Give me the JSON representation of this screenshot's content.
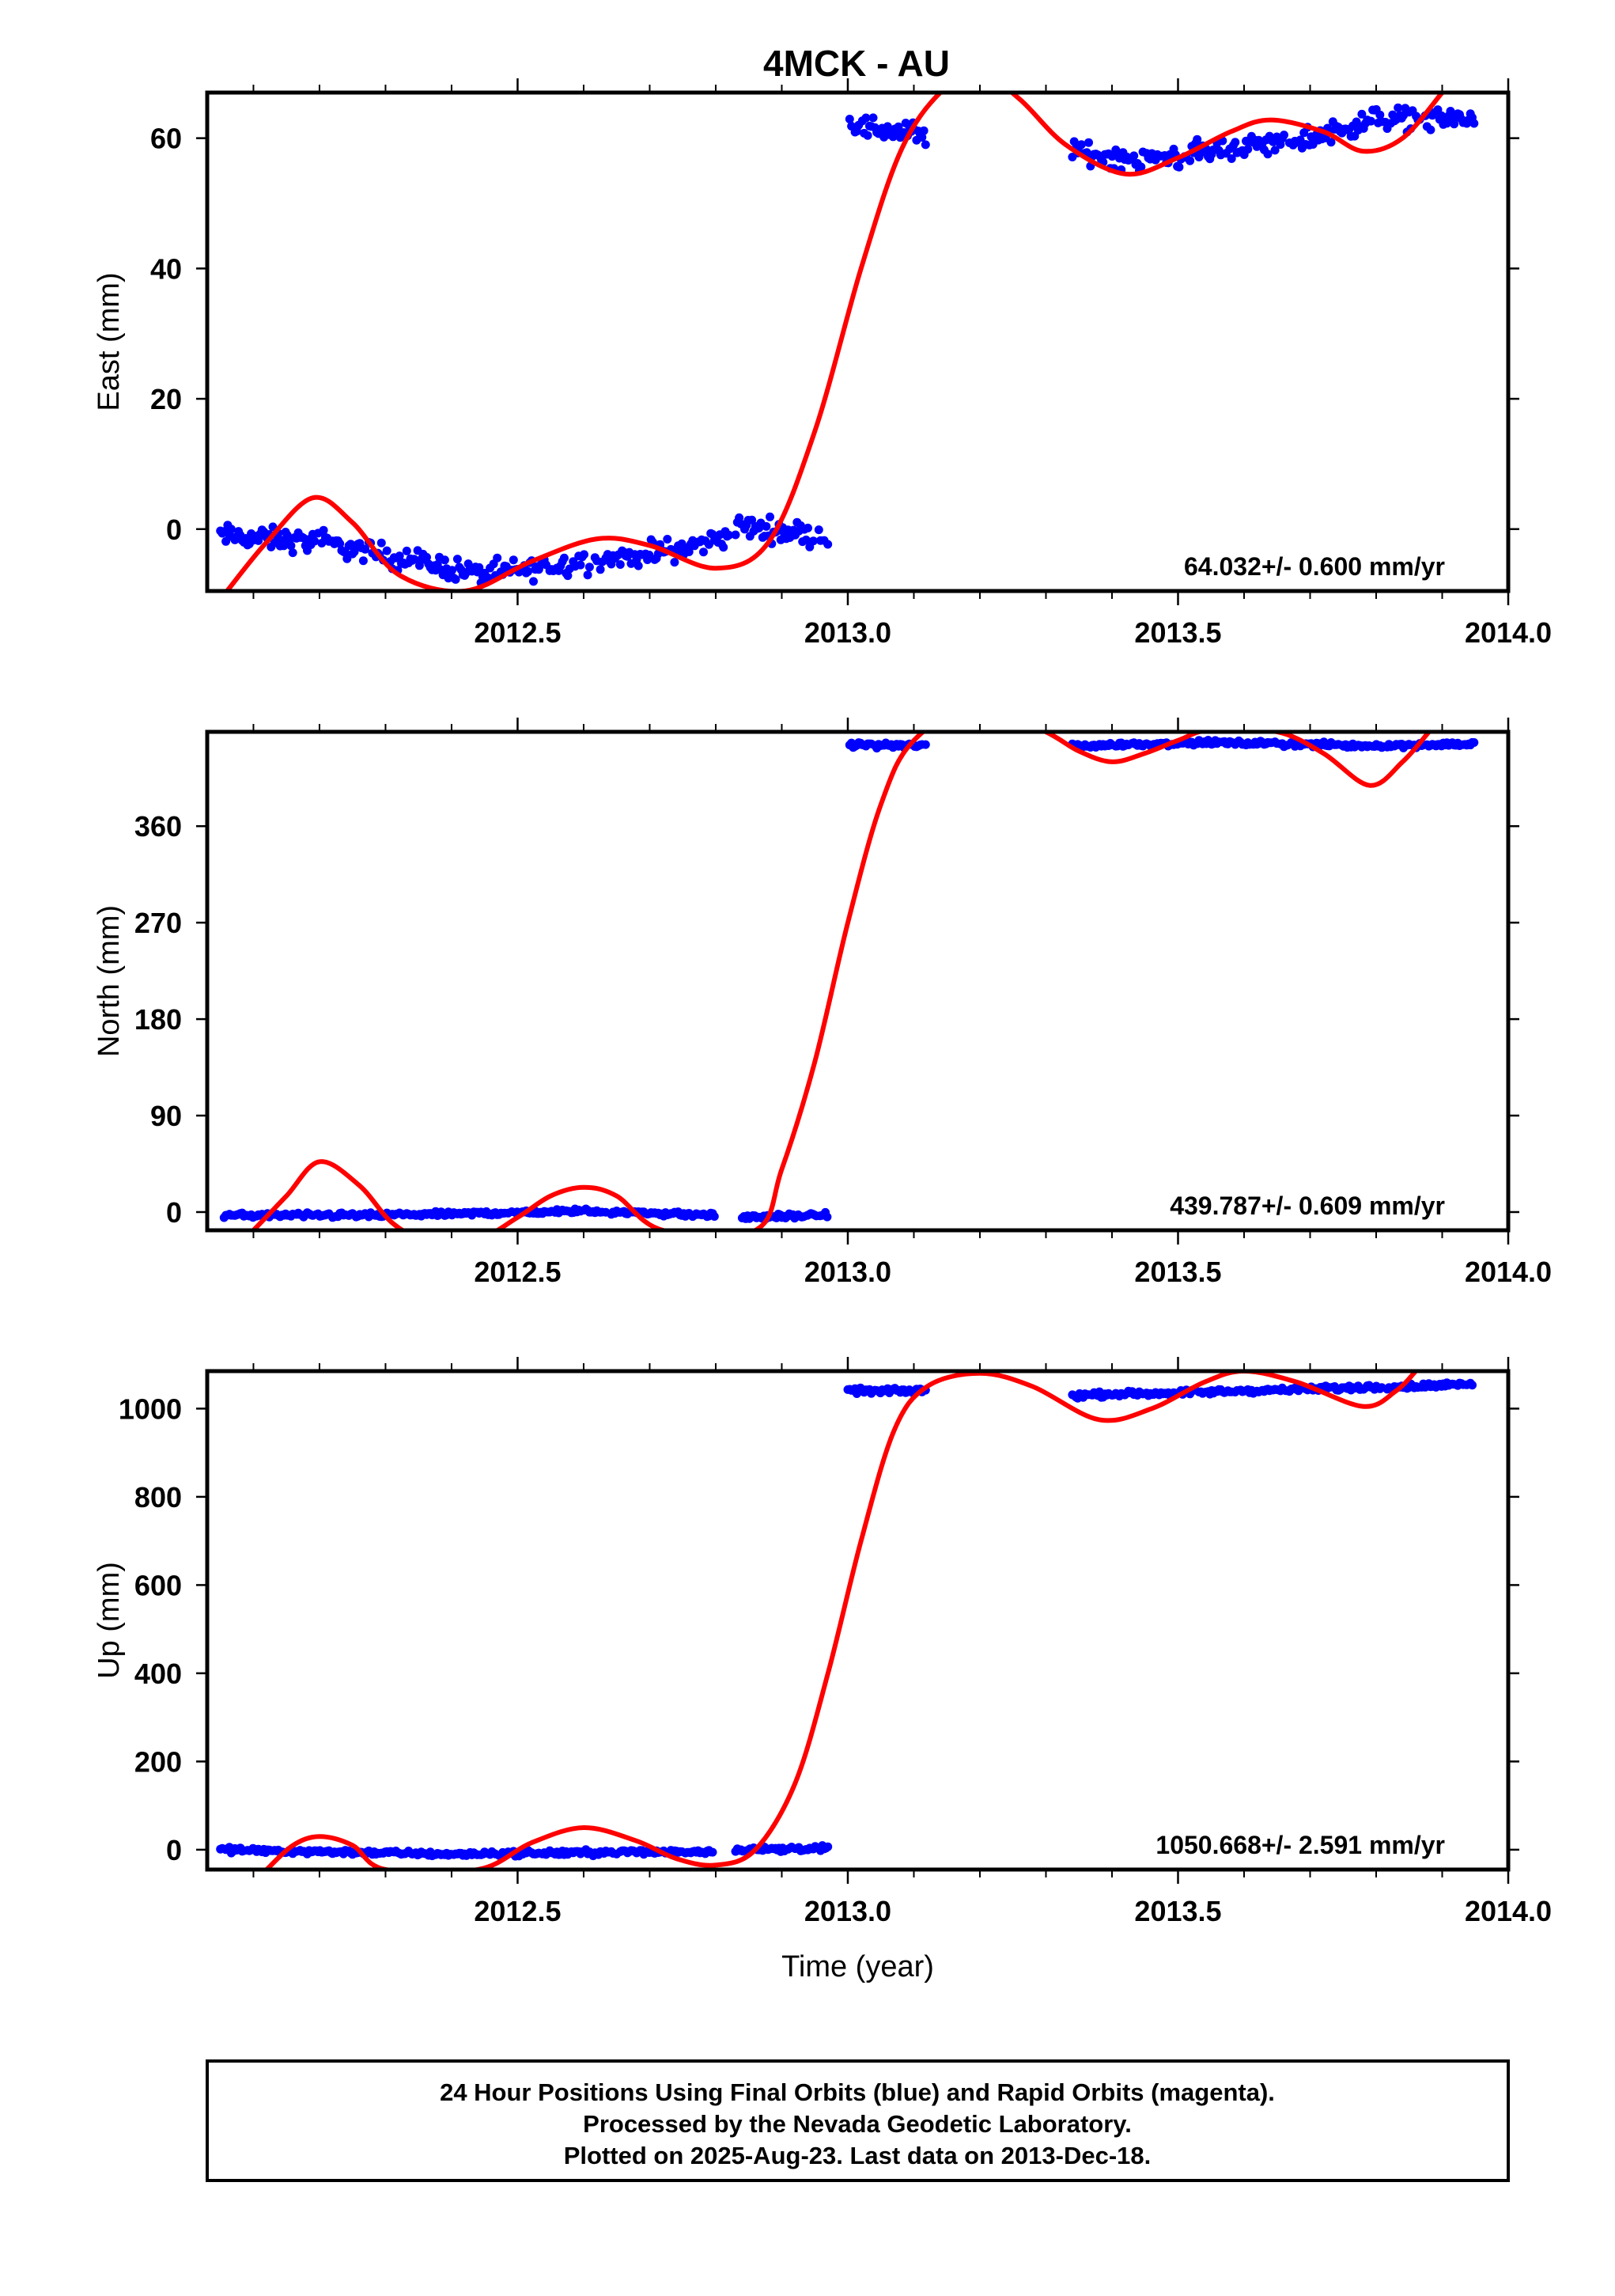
{
  "figure_title": "4MCK - AU",
  "footer": {
    "line1": "24 Hour Positions Using Final Orbits (blue) and Rapid Orbits (magenta).",
    "line2": "Processed by the Nevada Geodetic Laboratory.",
    "line3": "Plotted on 2025-Aug-23. Last data on 2013-Dec-18."
  },
  "colors": {
    "data": "#0000ff",
    "model": "#ff0000",
    "frame": "#000000"
  },
  "chart_data": [
    {
      "type": "scatter",
      "panel": "east",
      "title": "4MCK - AU",
      "xlabel": "",
      "ylabel": "East (mm)",
      "xlim": [
        2012.03,
        2014.0
      ],
      "ylim": [
        -9.5,
        67
      ],
      "x_ticks": [
        2012.5,
        2013.0,
        2013.5,
        2014.0
      ],
      "x_tick_labels": [
        "2012.5",
        "2013.0",
        "2013.5",
        "2014.0"
      ],
      "y_ticks": [
        0,
        20,
        40,
        60
      ],
      "y_tick_labels": [
        "0",
        "20",
        "40",
        "60"
      ],
      "rate_label": "64.032+/- 0.600 mm/yr",
      "series": [
        {
          "kind": "points",
          "color": "#0000ff",
          "noise": 1.2,
          "segments": [
            {
              "x0": 2012.05,
              "x1": 2012.82,
              "trend": [
                [
                  2012.05,
                  -1
                ],
                [
                  2012.2,
                  -2
                ],
                [
                  2012.3,
                  -4
                ],
                [
                  2012.45,
                  -7
                ],
                [
                  2012.6,
                  -5
                ],
                [
                  2012.75,
                  -3
                ],
                [
                  2012.82,
                  -1
                ]
              ]
            },
            {
              "x0": 2012.83,
              "x1": 2012.97,
              "trend": [
                [
                  2012.83,
                  0.5
                ],
                [
                  2012.97,
                  -1
                ]
              ]
            },
            {
              "x0": 2013.0,
              "x1": 2013.12,
              "trend": [
                [
                  2013.0,
                  62
                ],
                [
                  2013.12,
                  60.5
                ]
              ]
            },
            {
              "x0": 2013.34,
              "x1": 2013.95,
              "trend": [
                [
                  2013.34,
                  58
                ],
                [
                  2013.45,
                  56.5
                ],
                [
                  2013.55,
                  58
                ],
                [
                  2013.7,
                  60
                ],
                [
                  2013.8,
                  63
                ],
                [
                  2013.95,
                  63
                ]
              ]
            }
          ]
        },
        {
          "kind": "model",
          "color": "#ff0000",
          "curve": [
            [
              2012.06,
              -9.5
            ],
            [
              2012.12,
              -2
            ],
            [
              2012.19,
              4.8
            ],
            [
              2012.25,
              1
            ],
            [
              2012.32,
              -7
            ],
            [
              2012.42,
              -9.5
            ],
            [
              2012.52,
              -5
            ],
            [
              2012.62,
              -1.5
            ],
            [
              2012.7,
              -2.5
            ],
            [
              2012.8,
              -6
            ],
            [
              2012.88,
              -2
            ],
            [
              2012.95,
              15
            ],
            [
              2013.02,
              40
            ],
            [
              2013.08,
              58
            ],
            [
              2013.14,
              67
            ],
            [
              2013.2,
              70
            ],
            [
              2013.26,
              66
            ],
            [
              2013.33,
              59
            ],
            [
              2013.42,
              54.5
            ],
            [
              2013.5,
              57
            ],
            [
              2013.58,
              61
            ],
            [
              2013.64,
              62.8
            ],
            [
              2013.72,
              61
            ],
            [
              2013.78,
              58
            ],
            [
              2013.84,
              60
            ],
            [
              2013.9,
              67
            ]
          ]
        }
      ]
    },
    {
      "type": "scatter",
      "panel": "north",
      "xlabel": "",
      "ylabel": "North (mm)",
      "xlim": [
        2012.03,
        2014.0
      ],
      "ylim": [
        -17,
        448
      ],
      "x_ticks": [
        2012.5,
        2013.0,
        2013.5,
        2014.0
      ],
      "x_tick_labels": [
        "2012.5",
        "2013.0",
        "2013.5",
        "2014.0"
      ],
      "y_ticks": [
        0,
        90,
        180,
        270,
        360
      ],
      "y_tick_labels": [
        "0",
        "90",
        "180",
        "270",
        "360"
      ],
      "rate_label": "439.787+/- 0.609 mm/yr",
      "series": [
        {
          "kind": "points",
          "color": "#0000ff",
          "noise": 1.5,
          "segments": [
            {
              "x0": 2012.05,
              "x1": 2012.8,
              "trend": [
                [
                  2012.05,
                  -3
                ],
                [
                  2012.3,
                  -3
                ],
                [
                  2012.6,
                  1
                ],
                [
                  2012.8,
                  -3
                ]
              ]
            },
            {
              "x0": 2012.84,
              "x1": 2012.97,
              "trend": [
                [
                  2012.84,
                  -5
                ],
                [
                  2012.97,
                  -3
                ]
              ]
            },
            {
              "x0": 2013.0,
              "x1": 2013.12,
              "trend": [
                [
                  2013.0,
                  436
                ],
                [
                  2013.12,
                  435
                ]
              ]
            },
            {
              "x0": 2013.34,
              "x1": 2013.95,
              "trend": [
                [
                  2013.34,
                  435
                ],
                [
                  2013.55,
                  438
                ],
                [
                  2013.8,
                  435
                ],
                [
                  2013.95,
                  437
                ]
              ]
            }
          ]
        },
        {
          "kind": "model",
          "color": "#ff0000",
          "curve": [
            [
              2012.1,
              -17
            ],
            [
              2012.15,
              15
            ],
            [
              2012.2,
              47
            ],
            [
              2012.26,
              25
            ],
            [
              2012.31,
              -10
            ],
            [
              2012.36,
              -25
            ],
            [
              2012.44,
              -25
            ],
            [
              2012.5,
              -5
            ],
            [
              2012.55,
              15
            ],
            [
              2012.6,
              23
            ],
            [
              2012.65,
              15
            ],
            [
              2012.72,
              -17
            ],
            [
              2012.86,
              -17
            ],
            [
              2012.9,
              40
            ],
            [
              2012.95,
              140
            ],
            [
              2013.0,
              270
            ],
            [
              2013.05,
              380
            ],
            [
              2013.1,
              440
            ],
            [
              2013.2,
              475
            ],
            [
              2013.3,
              448
            ],
            [
              2013.35,
              430
            ],
            [
              2013.4,
              420
            ],
            [
              2013.45,
              428
            ],
            [
              2013.5,
              440
            ],
            [
              2013.55,
              450
            ],
            [
              2013.65,
              448
            ],
            [
              2013.72,
              428
            ],
            [
              2013.79,
              398
            ],
            [
              2013.84,
              420
            ],
            [
              2013.88,
              448
            ]
          ]
        }
      ]
    },
    {
      "type": "scatter",
      "panel": "up",
      "xlabel": "Time (year)",
      "ylabel": "Up (mm)",
      "xlim": [
        2012.03,
        2014.0
      ],
      "ylim": [
        -45,
        1085
      ],
      "x_ticks": [
        2012.5,
        2013.0,
        2013.5,
        2014.0
      ],
      "x_tick_labels": [
        "2012.5",
        "2013.0",
        "2013.5",
        "2014.0"
      ],
      "y_ticks": [
        0,
        200,
        400,
        600,
        800,
        1000
      ],
      "y_tick_labels": [
        "0",
        "200",
        "400",
        "600",
        "800",
        "1000"
      ],
      "rate_label": "1050.668+/- 2.591 mm/yr",
      "series": [
        {
          "kind": "points",
          "color": "#0000ff",
          "noise": 4,
          "segments": [
            {
              "x0": 2012.05,
              "x1": 2012.8,
              "trend": [
                [
                  2012.05,
                  0
                ],
                [
                  2012.4,
                  -10
                ],
                [
                  2012.8,
                  -3
                ]
              ]
            },
            {
              "x0": 2012.83,
              "x1": 2012.97,
              "trend": [
                [
                  2012.83,
                  0
                ],
                [
                  2012.97,
                  3
                ]
              ]
            },
            {
              "x0": 2013.0,
              "x1": 2013.12,
              "trend": [
                [
                  2013.0,
                  1040
                ],
                [
                  2013.12,
                  1040
                ]
              ]
            },
            {
              "x0": 2013.34,
              "x1": 2013.95,
              "trend": [
                [
                  2013.34,
                  1030
                ],
                [
                  2013.6,
                  1040
                ],
                [
                  2013.95,
                  1055
                ]
              ]
            }
          ]
        },
        {
          "kind": "model",
          "color": "#ff0000",
          "curve": [
            [
              2012.12,
              -45
            ],
            [
              2012.16,
              10
            ],
            [
              2012.2,
              30
            ],
            [
              2012.25,
              10
            ],
            [
              2012.3,
              -45
            ],
            [
              2012.44,
              -45
            ],
            [
              2012.52,
              15
            ],
            [
              2012.6,
              50
            ],
            [
              2012.68,
              20
            ],
            [
              2012.74,
              -20
            ],
            [
              2012.8,
              -35
            ],
            [
              2012.86,
              0
            ],
            [
              2012.92,
              150
            ],
            [
              2012.97,
              400
            ],
            [
              2013.02,
              700
            ],
            [
              2013.07,
              950
            ],
            [
              2013.12,
              1050
            ],
            [
              2013.2,
              1080
            ],
            [
              2013.28,
              1050
            ],
            [
              2013.38,
              975
            ],
            [
              2013.46,
              1000
            ],
            [
              2013.54,
              1060
            ],
            [
              2013.6,
              1085
            ],
            [
              2013.68,
              1060
            ],
            [
              2013.78,
              1005
            ],
            [
              2013.83,
              1040
            ],
            [
              2013.86,
              1085
            ]
          ]
        }
      ]
    }
  ]
}
